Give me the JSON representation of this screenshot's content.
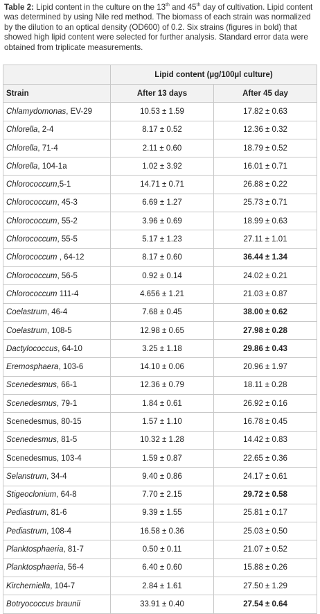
{
  "caption": {
    "label": "Table 2:",
    "text_1": " Lipid content in the culture on the 13",
    "sup_1": "th",
    "text_2": " and 45",
    "sup_2": "th",
    "text_3": " day of cultivation. Lipid content was determined by using Nile red method. The biomass of each strain was normalized by the dilution to an optical density (OD600) of 0.2. Six strains (figures in bold) that showed high lipid content were selected for further analysis. Standard error data were obtained from triplicate measurements."
  },
  "table": {
    "group_header": "Lipid content (µg/100µl culture)",
    "col_strain": "Strain",
    "col_13": "After 13 days",
    "col_45": "After 45 day",
    "rows": [
      {
        "genus": "Chlamydomonas",
        "suffix": ", EV-29",
        "italic": true,
        "d13": "10.53 ± 1.59",
        "d45": "17.82 ± 0.63",
        "bold": false
      },
      {
        "genus": "Chlorella",
        "suffix": ", 2-4",
        "italic": true,
        "d13": "8.17 ± 0.52",
        "d45": "12.36 ± 0.32",
        "bold": false
      },
      {
        "genus": "Chlorella",
        "suffix": ", 71-4",
        "italic": true,
        "d13": "2.11 ± 0.60",
        "d45": "18.79 ± 0.52",
        "bold": false
      },
      {
        "genus": "Chlorella",
        "suffix": ", 104-1a",
        "italic": true,
        "d13": "1.02 ± 3.92",
        "d45": "16.01 ± 0.71",
        "bold": false
      },
      {
        "genus": "Chlorococcum",
        "suffix": ",5-1",
        "italic": true,
        "d13": "14.71 ± 0.71",
        "d45": "26.88 ± 0.22",
        "bold": false
      },
      {
        "genus": "Chlorococcum",
        "suffix": ", 45-3",
        "italic": true,
        "d13": "6.69 ± 1.27",
        "d45": "25.73 ± 0.71",
        "bold": false
      },
      {
        "genus": "Chlorococcum",
        "suffix": ", 55-2",
        "italic": true,
        "d13": "3.96 ± 0.69",
        "d45": "18.99 ± 0.63",
        "bold": false
      },
      {
        "genus": "Chlorococcum",
        "suffix": ", 55-5",
        "italic": true,
        "d13": "5.17 ± 1.23",
        "d45": "27.11 ± 1.01",
        "bold": false
      },
      {
        "genus": "Chlorococcum",
        "suffix": " , 64-12",
        "italic": true,
        "d13": "8.17 ± 0.60",
        "d45": "36.44 ± 1.34",
        "bold": true
      },
      {
        "genus": "Chlorococcum",
        "suffix": ", 56-5",
        "italic": true,
        "d13": "0.92 ± 0.14",
        "d45": "24.02 ± 0.21",
        "bold": false
      },
      {
        "genus": "Chlorococcum",
        "suffix": " 111-4",
        "italic": true,
        "d13": "4.656 ± 1.21",
        "d45": "21.03 ± 0.87",
        "bold": false
      },
      {
        "genus": "Coelastrum",
        "suffix": ", 46-4",
        "italic": true,
        "d13": "7.68 ± 0.45",
        "d45": "38.00 ± 0.62",
        "bold": true
      },
      {
        "genus": "Coelastrum",
        "suffix": ", 108-5",
        "italic": true,
        "d13": "12.98 ± 0.65",
        "d45": "27.98 ± 0.28",
        "bold": true
      },
      {
        "genus": "Dactylococcus",
        "suffix": ", 64-10",
        "italic": true,
        "d13": "3.25 ± 1.18",
        "d45": "29.86 ± 0.43",
        "bold": true
      },
      {
        "genus": "Eremosphaera",
        "suffix": ", 103-6",
        "italic": true,
        "d13": "14.10 ± 0.06",
        "d45": "20.96 ± 1.97",
        "bold": false
      },
      {
        "genus": "Scenedesmus",
        "suffix": ", 66-1",
        "italic": true,
        "d13": "12.36 ± 0.79",
        "d45": "18.11 ± 0.28",
        "bold": false
      },
      {
        "genus": "Scenedesmus",
        "suffix": ", 79-1",
        "italic": true,
        "d13": "1.84 ± 0.61",
        "d45": "26.92 ± 0.16",
        "bold": false
      },
      {
        "genus": "Scenedesmus",
        "suffix": ", 80-15",
        "italic": false,
        "d13": "1.57 ± 1.10",
        "d45": "16.78 ± 0.45",
        "bold": false
      },
      {
        "genus": "Scenedesmus",
        "suffix": ", 81-5",
        "italic": true,
        "d13": "10.32 ± 1.28",
        "d45": "14.42 ± 0.83",
        "bold": false
      },
      {
        "genus": "Scenedesmus",
        "suffix": ", 103-4",
        "italic": false,
        "d13": "1.59 ± 0.87",
        "d45": "22.65 ± 0.36",
        "bold": false
      },
      {
        "genus": "Selanstrum",
        "suffix": ", 34-4",
        "italic": true,
        "d13": "9.40 ± 0.86",
        "d45": "24.17 ± 0.61",
        "bold": false
      },
      {
        "genus": "Stigeoclonium",
        "suffix": ", 64-8",
        "italic": true,
        "d13": "7.70 ± 2.15",
        "d45": "29.72 ± 0.58",
        "bold": true
      },
      {
        "genus": "Pediastrum",
        "suffix": ", 81-6",
        "italic": true,
        "d13": "9.39 ± 1.55",
        "d45": "25.81 ± 0.17",
        "bold": false
      },
      {
        "genus": "Pediastrum",
        "suffix": ", 108-4",
        "italic": true,
        "d13": "16.58 ± 0.36",
        "d45": "25.03 ± 0.50",
        "bold": false
      },
      {
        "genus": "Planktosphaeria",
        "suffix": ", 81-7",
        "italic": true,
        "d13": "0.50 ± 0.11",
        "d45": "21.07 ± 0.52",
        "bold": false
      },
      {
        "genus": "Planktosphaeria",
        "suffix": ", 56-4",
        "italic": true,
        "d13": "6.40 ± 0.60",
        "d45": "15.88 ± 0.26",
        "bold": false
      },
      {
        "genus": "Kircherniella",
        "suffix": ", 104-7",
        "italic": true,
        "d13": "2.84 ± 1.61",
        "d45": "27.50 ± 1.29",
        "bold": false
      },
      {
        "genus": "Botryococcus braunii",
        "suffix": "",
        "italic": true,
        "d13": "33.91 ± 0.40",
        "d45": "27.54 ± 0.64",
        "bold": true
      }
    ]
  }
}
